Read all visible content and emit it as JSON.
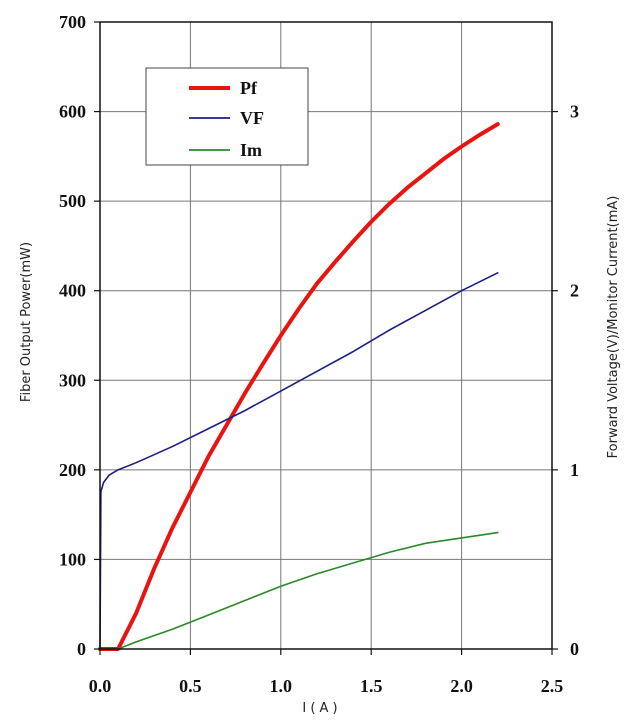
{
  "chart_data": {
    "type": "line",
    "xlabel": "I ( A )",
    "ylabel_left": "Fiber Output Power(mW)",
    "ylabel_right": "Forward Voltage(V)/Monitor Current(mA)",
    "xlim": [
      0,
      2.5
    ],
    "ylim_left": [
      0,
      700
    ],
    "ylim_right": [
      0,
      3.5
    ],
    "x_ticks": [
      "0.0",
      "0.5",
      "1.0",
      "1.5",
      "2.0",
      "2.5"
    ],
    "y_ticks_left": [
      "0",
      "100",
      "200",
      "300",
      "400",
      "500",
      "600",
      "700"
    ],
    "y_ticks_right": [
      "0",
      "1",
      "2",
      "3"
    ],
    "grid": true,
    "legend": {
      "placement": "top-left"
    },
    "series": [
      {
        "name": "Pf",
        "axis": "left",
        "color": "#e8140f",
        "points": [
          [
            0.0,
            0
          ],
          [
            0.08,
            0
          ],
          [
            0.1,
            0
          ],
          [
            0.2,
            40
          ],
          [
            0.3,
            90
          ],
          [
            0.4,
            135
          ],
          [
            0.5,
            175
          ],
          [
            0.6,
            215
          ],
          [
            0.7,
            250
          ],
          [
            0.8,
            285
          ],
          [
            0.9,
            318
          ],
          [
            1.0,
            350
          ],
          [
            1.1,
            380
          ],
          [
            1.2,
            408
          ],
          [
            1.3,
            432
          ],
          [
            1.4,
            455
          ],
          [
            1.5,
            477
          ],
          [
            1.6,
            497
          ],
          [
            1.7,
            515
          ],
          [
            1.8,
            531
          ],
          [
            1.9,
            547
          ],
          [
            2.0,
            561
          ],
          [
            2.1,
            574
          ],
          [
            2.2,
            586
          ]
        ]
      },
      {
        "name": "VF",
        "axis": "right",
        "color": "#1c1f80",
        "points": [
          [
            0.0,
            0
          ],
          [
            0.005,
            0.88
          ],
          [
            0.02,
            0.93
          ],
          [
            0.05,
            0.97
          ],
          [
            0.1,
            1.0
          ],
          [
            0.2,
            1.04
          ],
          [
            0.4,
            1.13
          ],
          [
            0.6,
            1.23
          ],
          [
            0.8,
            1.33
          ],
          [
            1.0,
            1.44
          ],
          [
            1.2,
            1.55
          ],
          [
            1.4,
            1.66
          ],
          [
            1.6,
            1.78
          ],
          [
            1.8,
            1.89
          ],
          [
            2.0,
            2.0
          ],
          [
            2.2,
            2.1
          ]
        ]
      },
      {
        "name": "Im",
        "axis": "right",
        "color": "#2a8a2a",
        "points": [
          [
            0.0,
            0
          ],
          [
            0.1,
            0
          ],
          [
            0.2,
            0.04
          ],
          [
            0.4,
            0.11
          ],
          [
            0.6,
            0.19
          ],
          [
            0.8,
            0.27
          ],
          [
            1.0,
            0.35
          ],
          [
            1.2,
            0.42
          ],
          [
            1.4,
            0.48
          ],
          [
            1.6,
            0.54
          ],
          [
            1.8,
            0.59
          ],
          [
            2.0,
            0.62
          ],
          [
            2.2,
            0.65
          ]
        ]
      }
    ]
  }
}
